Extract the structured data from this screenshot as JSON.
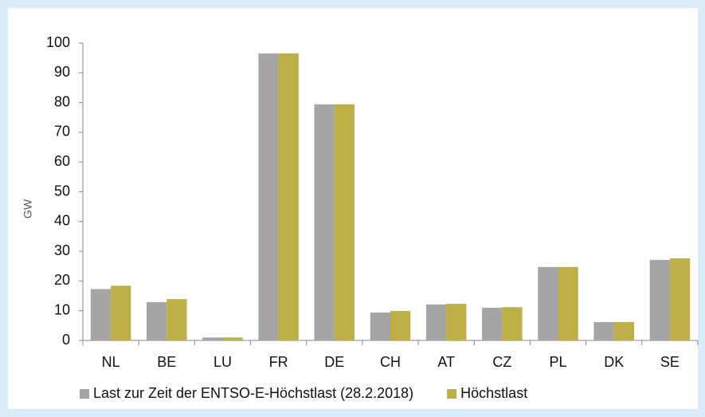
{
  "chart_data": {
    "type": "bar",
    "y_label": "GW",
    "categories": [
      "NL",
      "BE",
      "LU",
      "FR",
      "DE",
      "CH",
      "AT",
      "CZ",
      "PL",
      "DK",
      "SE"
    ],
    "series": [
      {
        "name": "Last zur Zeit der ENTSO-E-Höchstlast (28.2.2018)",
        "color": "#a5a5a5",
        "values": [
          17.3,
          12.9,
          1,
          96.5,
          79.4,
          9.4,
          12.1,
          11,
          24.7,
          6.2,
          27.1
        ]
      },
      {
        "name": "Höchstlast",
        "color": "#bcb046",
        "values": [
          18.4,
          13.9,
          1,
          96.5,
          79.4,
          9.9,
          12.3,
          11.2,
          24.7,
          6.2,
          27.6
        ]
      }
    ],
    "ylim": [
      0,
      100
    ],
    "yticks": [
      0,
      10,
      20,
      30,
      40,
      50,
      60,
      70,
      80,
      90,
      100
    ],
    "grid": false,
    "legend": "bottom"
  }
}
